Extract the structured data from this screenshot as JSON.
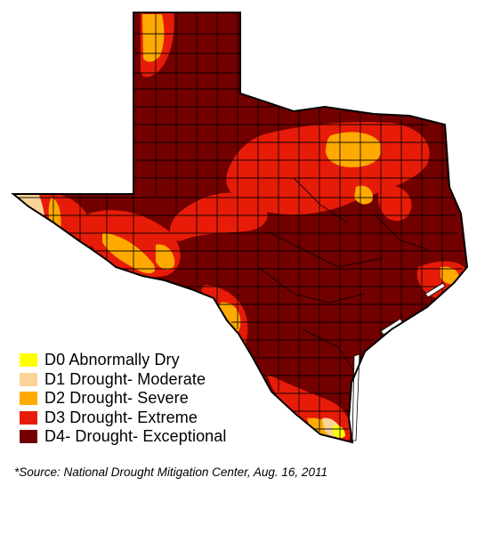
{
  "map": {
    "region": "Texas",
    "base_category": "D4",
    "colors": {
      "D0": "#ffff00",
      "D1": "#fcd399",
      "D2": "#ffaa00",
      "D3": "#e61c09",
      "D4": "#730000",
      "county_lines": "#000000"
    }
  },
  "legend": {
    "items": [
      {
        "code": "D0",
        "label": "D0 Abnormally Dry",
        "color": "#ffff00"
      },
      {
        "code": "D1",
        "label": "D1 Drought- Moderate",
        "color": "#fcd399"
      },
      {
        "code": "D2",
        "label": "D2 Drought- Severe",
        "color": "#ffaa00"
      },
      {
        "code": "D3",
        "label": "D3 Drought- Extreme",
        "color": "#e61c09"
      },
      {
        "code": "D4",
        "label": "D4- Drought- Exceptional",
        "color": "#730000"
      }
    ]
  },
  "source": {
    "text": "*Source: National Drought Mitigation Center, Aug. 16, 2011"
  }
}
